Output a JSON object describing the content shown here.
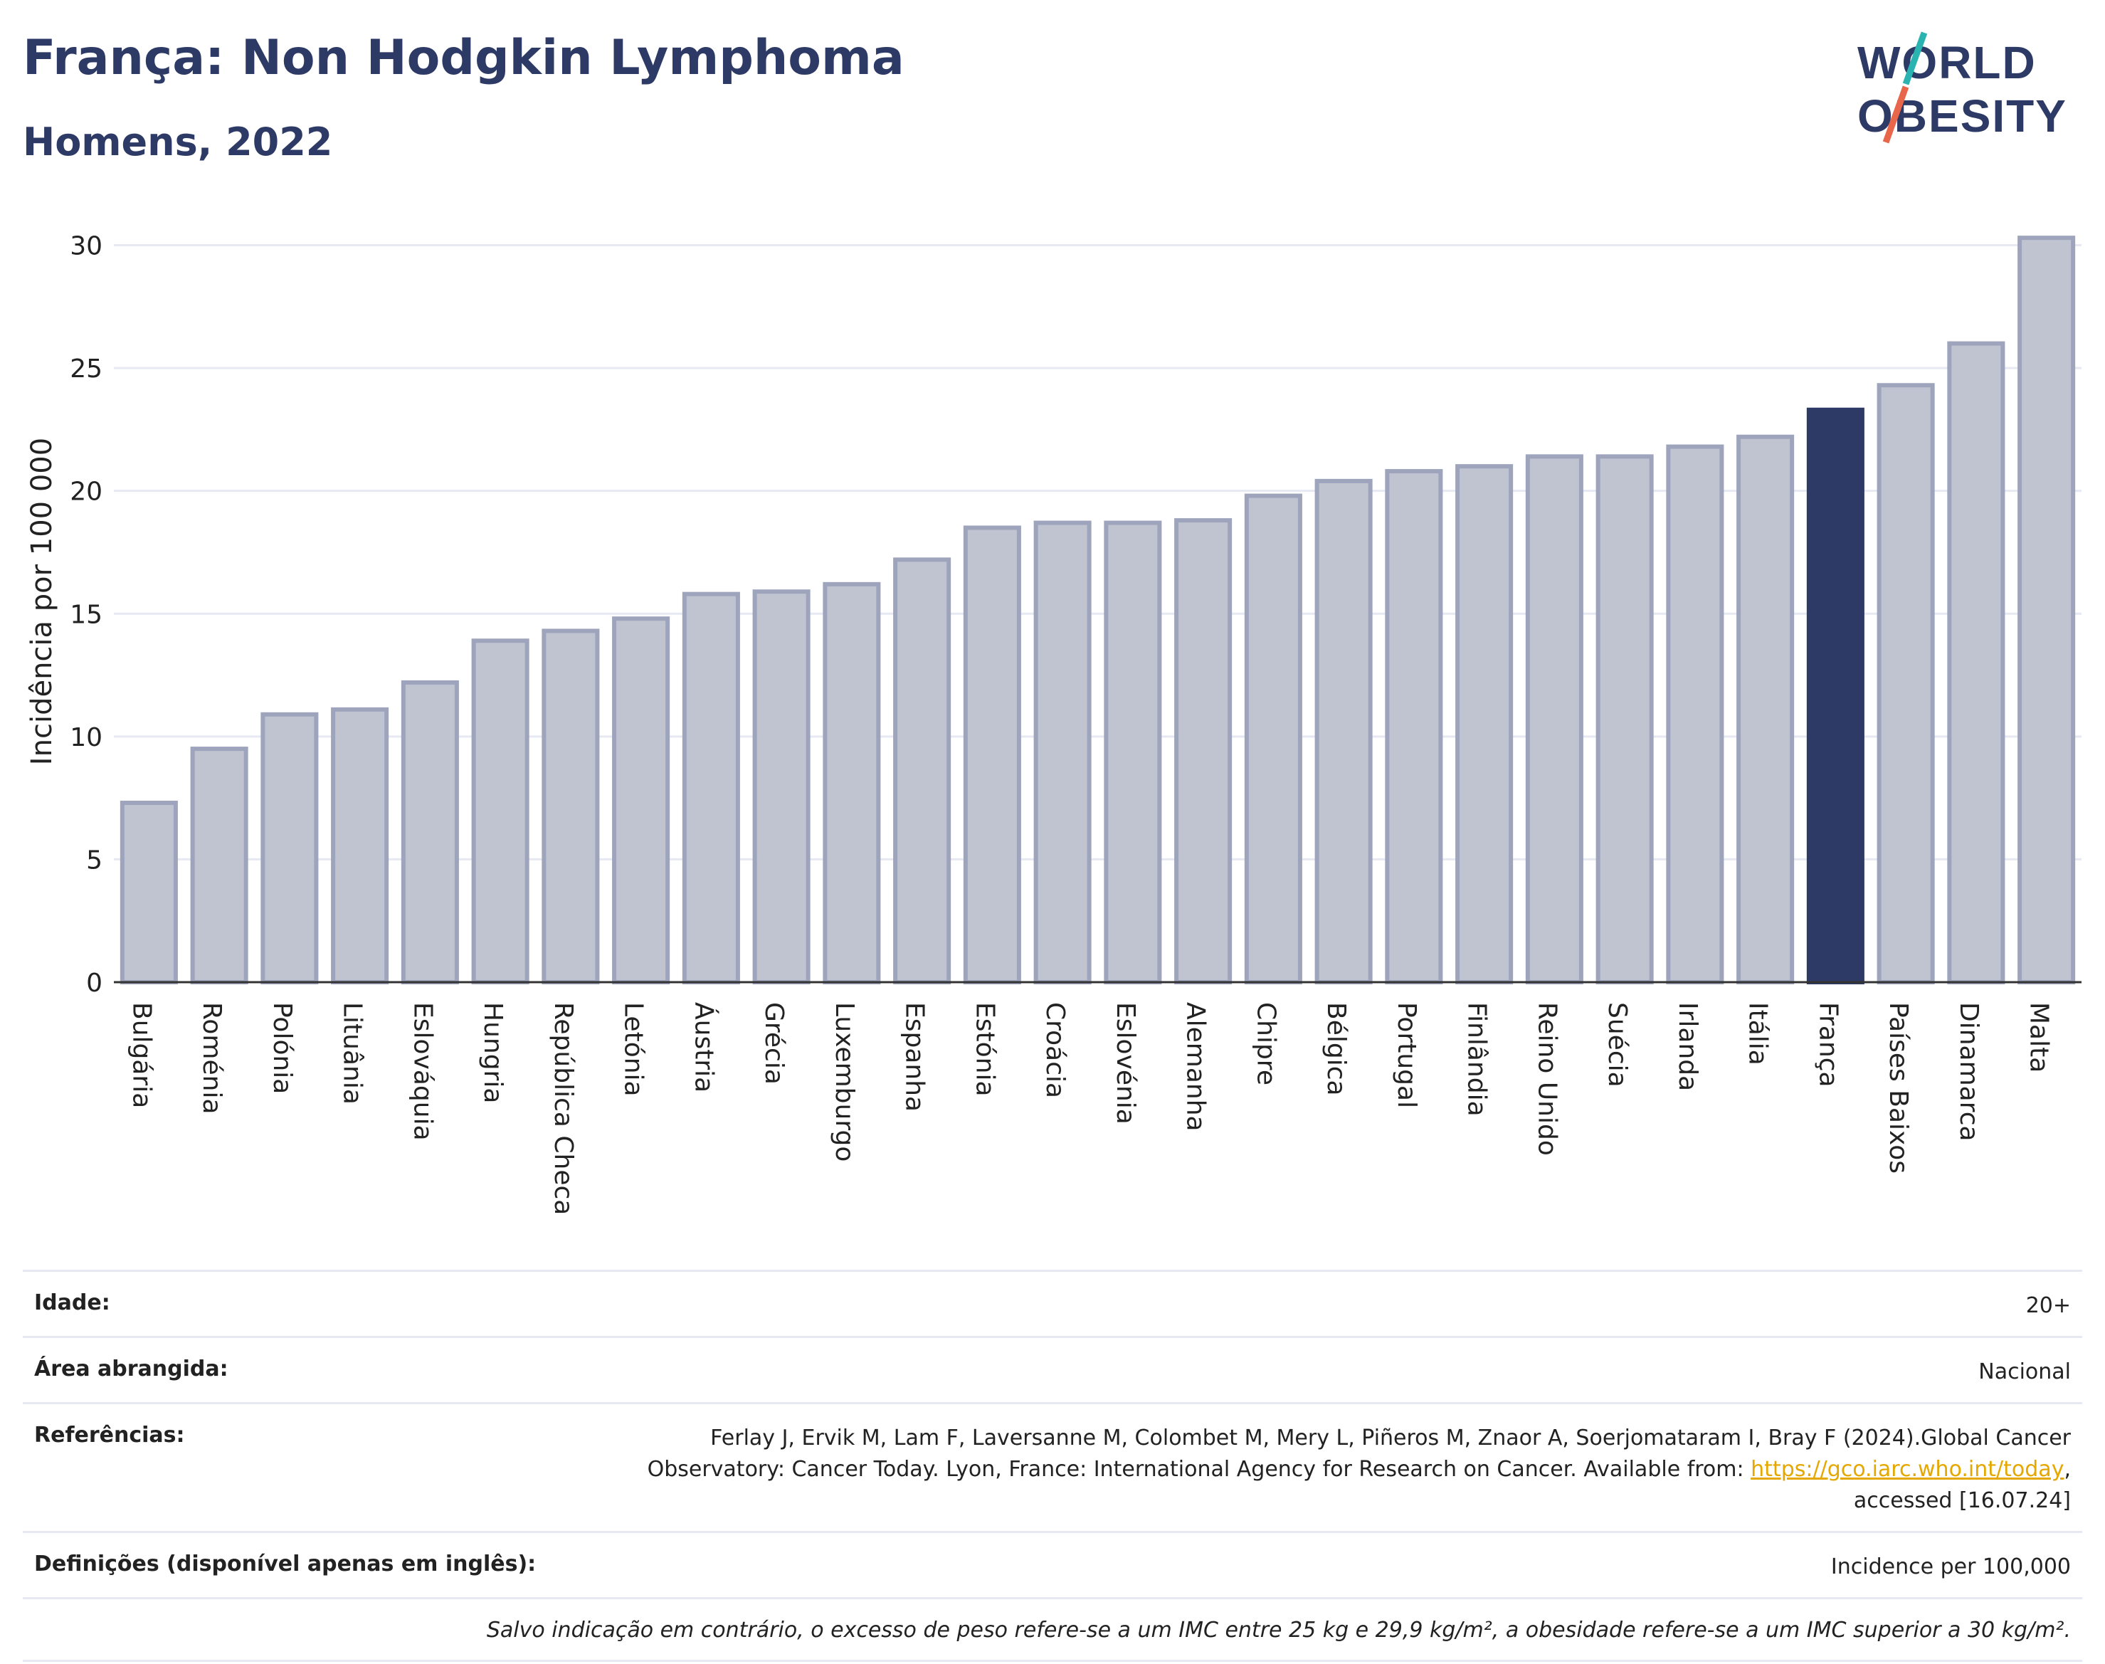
{
  "header": {
    "title": "França: Non Hodgkin Lymphoma",
    "subtitle": "Homens, 2022"
  },
  "logo": {
    "line1": "WORLD",
    "line2": "OBESITY",
    "accent_colors": [
      "#2bb3b1",
      "#e8664a"
    ]
  },
  "colors": {
    "highlight": "#2d3a66",
    "bar": "#c0c4d1",
    "bar_border": "#9da4bc",
    "text_dark": "#2d3a66"
  },
  "chart_data": {
    "type": "bar",
    "ylabel": "Incidência por 100 000",
    "xlabel": "",
    "ylim": [
      0,
      31
    ],
    "yticks": [
      0,
      5,
      10,
      15,
      20,
      25,
      30
    ],
    "grid": true,
    "highlight": "França",
    "categories": [
      "Bulgária",
      "Roménia",
      "Polónia",
      "Lituânia",
      "Eslováquia",
      "Hungria",
      "República Checa",
      "Letónia",
      "Áustria",
      "Grécia",
      "Luxemburgo",
      "Espanha",
      "Estónia",
      "Croácia",
      "Eslovénia",
      "Alemanha",
      "Chipre",
      "Bélgica",
      "Portugal",
      "Finlândia",
      "Reino Unido",
      "Suécia",
      "Irlanda",
      "Itália",
      "França",
      "Países Baixos",
      "Dinamarca",
      "Malta"
    ],
    "values": [
      7.3,
      9.5,
      10.9,
      11.1,
      12.2,
      13.9,
      14.3,
      14.8,
      15.8,
      15.9,
      16.2,
      17.2,
      18.5,
      18.7,
      18.7,
      18.8,
      19.8,
      20.4,
      20.8,
      21.0,
      21.4,
      21.4,
      21.8,
      22.2,
      23.3,
      24.3,
      26.0,
      30.3
    ]
  },
  "meta": {
    "age_label": "Idade:",
    "age_value": "20+",
    "area_label": "Área abrangida:",
    "area_value": "Nacional",
    "ref_label": "Referências:",
    "ref_text_1": "Ferlay J, Ervik M, Lam F, Laversanne M, Colombet M, Mery L, Piñeros M, Znaor A, Soerjomataram I, Bray F (2024).Global Cancer Observatory: Cancer Today. Lyon, France: International Agency for Research on Cancer. Available from: ",
    "ref_link": "https://gco.iarc.who.int/today",
    "ref_text_2": ", accessed [16.07.24]",
    "def_label": "Definições (disponível apenas em inglês):",
    "def_value": "Incidence per 100,000",
    "note": "Salvo indicação em contrário, o excesso de peso refere-se a um IMC entre 25 kg e 29,9 kg/m², a obesidade refere-se a um IMC superior a 30 kg/m²."
  }
}
